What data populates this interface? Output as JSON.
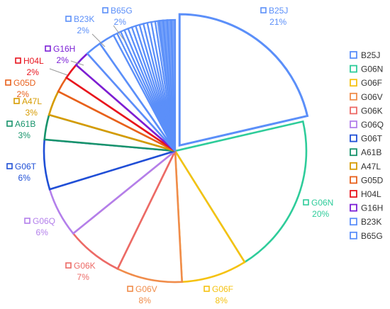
{
  "chart_data": {
    "type": "pie",
    "slices": [
      {
        "label": "B25J",
        "value": 21,
        "pct_label": "21%",
        "color": "#5b8ff9"
      },
      {
        "label": "G06N",
        "value": 20,
        "pct_label": "20%",
        "color": "#2ecc9a"
      },
      {
        "label": "G06F",
        "value": 8,
        "pct_label": "8%",
        "color": "#f5c211"
      },
      {
        "label": "G06V",
        "value": 8,
        "pct_label": "8%",
        "color": "#f08c4a"
      },
      {
        "label": "G06K",
        "value": 7,
        "pct_label": "7%",
        "color": "#ec6a66"
      },
      {
        "label": "G06Q",
        "value": 6,
        "pct_label": "6%",
        "color": "#b37feb"
      },
      {
        "label": "G06T",
        "value": 6,
        "pct_label": "6%",
        "color": "#1f4fd6"
      },
      {
        "label": "A61B",
        "value": 3,
        "pct_label": "3%",
        "color": "#17936b"
      },
      {
        "label": "A47L",
        "value": 3,
        "pct_label": "3%",
        "color": "#d69b00"
      },
      {
        "label": "G05D",
        "value": 2,
        "pct_label": "2%",
        "color": "#e8601c"
      },
      {
        "label": "H04L",
        "value": 2,
        "pct_label": "2%",
        "color": "#e8141e"
      },
      {
        "label": "G16H",
        "value": 2,
        "pct_label": "2%",
        "color": "#7b1fd6"
      },
      {
        "label": "B23K",
        "value": 2,
        "pct_label": "2%",
        "color": "#5b8ff9"
      },
      {
        "label": "B65G",
        "value": 2,
        "pct_label": "2%",
        "color": "#5b8ff9"
      }
    ],
    "others_sliver_count": 16,
    "others_color": "#5b8ff9",
    "highlighted": "B25J",
    "legend_position": "right"
  }
}
